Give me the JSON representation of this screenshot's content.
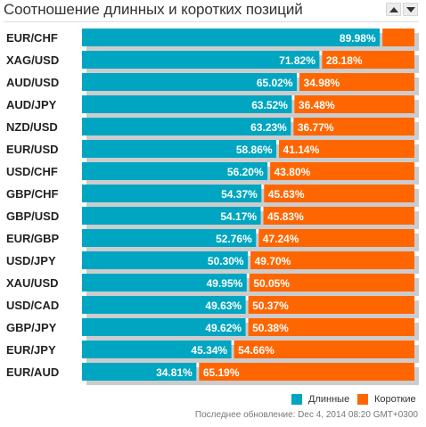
{
  "header": {
    "title": "Соотношение длинных и коротких позиций"
  },
  "chart_data": {
    "type": "bar",
    "stacked": true,
    "orientation": "horizontal",
    "categories": [
      "EUR/CHF",
      "XAG/USD",
      "AUD/USD",
      "AUD/JPY",
      "NZD/USD",
      "EUR/USD",
      "USD/CHF",
      "GBP/CHF",
      "GBP/USD",
      "EUR/GBP",
      "USD/JPY",
      "XAU/USD",
      "USD/CAD",
      "GBP/JPY",
      "EUR/JPY",
      "EUR/AUD"
    ],
    "series": [
      {
        "name": "Длинные",
        "color": "#00a6c1",
        "values": [
          89.98,
          71.82,
          65.02,
          63.52,
          63.23,
          58.86,
          56.2,
          54.37,
          54.17,
          52.76,
          50.3,
          49.95,
          49.63,
          49.62,
          45.34,
          34.81
        ]
      },
      {
        "name": "Короткие",
        "color": "#ff6600",
        "values": [
          10.02,
          28.18,
          34.98,
          36.48,
          36.77,
          41.14,
          43.8,
          45.63,
          45.83,
          47.24,
          49.7,
          50.05,
          50.37,
          50.38,
          54.66,
          65.19
        ]
      }
    ],
    "labels_long": [
      "89.98%",
      "71.82%",
      "65.02%",
      "63.52%",
      "63.23%",
      "58.86%",
      "56.20%",
      "54.37%",
      "54.17%",
      "52.76%",
      "50.30%",
      "49.95%",
      "49.63%",
      "49.62%",
      "45.34%",
      "34.81%"
    ],
    "labels_short": [
      "",
      "28.18%",
      "34.98%",
      "36.48%",
      "36.77%",
      "41.14%",
      "43.80%",
      "45.63%",
      "45.83%",
      "47.24%",
      "49.70%",
      "50.05%",
      "50.37%",
      "50.38%",
      "54.66%",
      "65.19%"
    ],
    "xlim": [
      0,
      100
    ],
    "legend_position": "bottom-right"
  },
  "footer": {
    "updated": "Последнее обновление: Dec 4, 2014 08:20 GMT+0300"
  }
}
